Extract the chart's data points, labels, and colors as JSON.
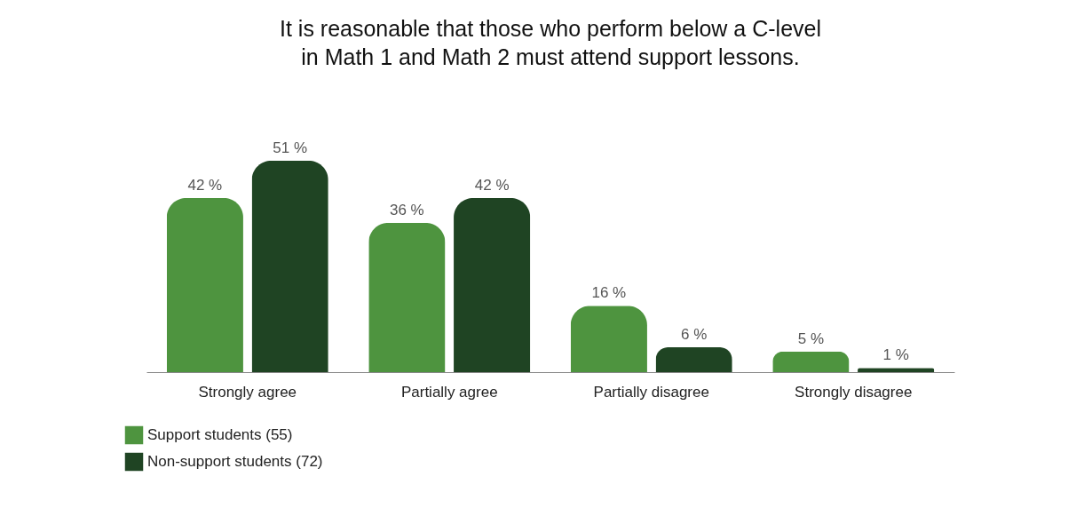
{
  "chart_data": {
    "type": "bar",
    "title": "It is reasonable that those who perform below a C-level\nin Math 1 and Math 2 must attend support lessons.",
    "categories": [
      "Strongly agree",
      "Partially agree",
      "Partially disagree",
      "Strongly disagree"
    ],
    "series": [
      {
        "name": "Support students (55)",
        "color": "#4e943f",
        "values": [
          42,
          36,
          16,
          5
        ],
        "value_labels": [
          "42 %",
          "36 %",
          "16 %",
          "5 %"
        ]
      },
      {
        "name": "Non-support students (72)",
        "color": "#1f4423",
        "values": [
          51,
          42,
          6,
          1
        ],
        "value_labels": [
          "51 %",
          "42 %",
          "6 %",
          "1 %"
        ]
      }
    ],
    "legend": "bottom left",
    "grid": false
  }
}
